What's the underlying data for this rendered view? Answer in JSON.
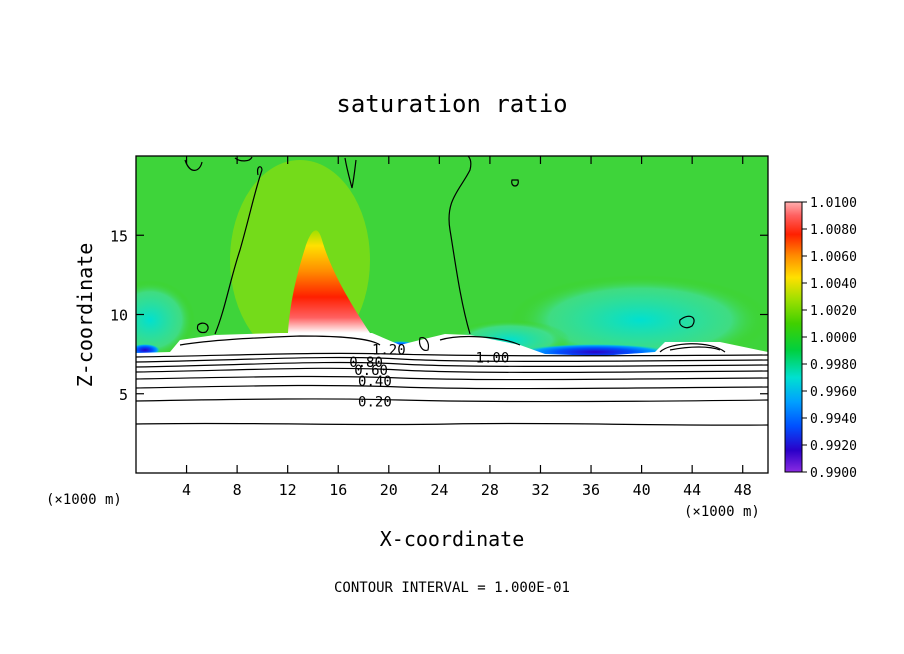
{
  "chart_data": {
    "type": "heatmap",
    "title": "saturation ratio",
    "xlabel": "X-coordinate",
    "ylabel": "Z-coordinate",
    "x_unit_left": "(×1000 m)",
    "x_unit_right": "(×1000 m)",
    "xlim": [
      0,
      50
    ],
    "ylim": [
      0,
      20
    ],
    "x_ticks": [
      4,
      8,
      12,
      16,
      20,
      24,
      28,
      32,
      36,
      40,
      44,
      48
    ],
    "y_ticks": [
      5,
      10,
      15
    ],
    "footer": "CONTOUR INTERVAL = 1.000E-01",
    "colorbar": {
      "min": 0.99,
      "max": 1.01,
      "labels": [
        "1.0100",
        "1.0080",
        "1.0060",
        "1.0040",
        "1.0020",
        "1.0000",
        "0.9980",
        "0.9960",
        "0.9940",
        "0.9920",
        "0.9900"
      ],
      "colors": [
        "#8a2be2",
        "#2a00c8",
        "#0050ff",
        "#00a0ff",
        "#00e0d0",
        "#00d040",
        "#40d000",
        "#a0e000",
        "#ffe000",
        "#ff8c00",
        "#ff2000",
        "#ff6060",
        "#ffb0b0"
      ]
    },
    "contour_labels": [
      {
        "text": "1.20",
        "x": 20.0,
        "z": 7.8
      },
      {
        "text": "0.80",
        "x": 18.2,
        "z": 7.0
      },
      {
        "text": "0.60",
        "x": 18.6,
        "z": 6.5
      },
      {
        "text": "0.40",
        "x": 18.9,
        "z": 5.8
      },
      {
        "text": "0.20",
        "x": 18.9,
        "z": 4.5
      },
      {
        "text": "1.00",
        "x": 28.2,
        "z": 7.3
      }
    ],
    "contour_levels_z": [
      3.1,
      4.6,
      5.4,
      5.9,
      6.3,
      6.6,
      6.9,
      7.2
    ],
    "features": {
      "supersaturated_plume": {
        "x_center": 14,
        "z_base": 8.5,
        "z_top": 16,
        "peak": 1.01
      },
      "subsaturated_band": {
        "x_range": [
          26,
          44
        ],
        "z": 7.7,
        "min": 0.99
      },
      "cloud_free_region_top_z": 7.5
    }
  }
}
